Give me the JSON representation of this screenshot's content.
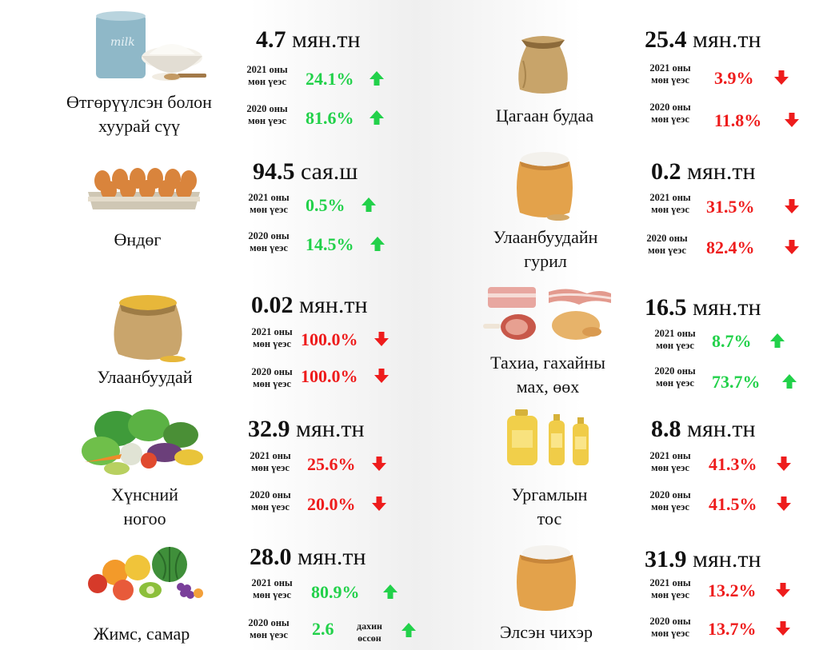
{
  "items": [
    {
      "name": "Өтгөрүүлсэн болон хуурай сүү",
      "name_l1": "Өтгөрүүлсэн болон",
      "name_l2": "хуурай сүү",
      "value": "4.7",
      "unit": "мян.тн",
      "icon": "milk-powder-icon",
      "cmp2021": {
        "label_l1": "2021 оны",
        "label_l2": "мөн үеэс",
        "pct": "24.1%",
        "dir": "up"
      },
      "cmp2020": {
        "label_l1": "2020 оны",
        "label_l2": "мөн үеэс",
        "pct": "81.6%",
        "dir": "up"
      }
    },
    {
      "name": "Цагаан будаа",
      "value": "25.4",
      "unit": "мян.тн",
      "icon": "rice-sack-icon",
      "cmp2021": {
        "label_l1": "2021 оны",
        "label_l2": "мөн үеэс",
        "pct": "3.9%",
        "dir": "down"
      },
      "cmp2020": {
        "label_l1": "2020 оны",
        "label_l2": "мөн үеэс",
        "pct": "11.8%",
        "dir": "down"
      }
    },
    {
      "name": "Өндөг",
      "value": "94.5",
      "unit": "сая.ш",
      "icon": "egg-tray-icon",
      "cmp2021": {
        "label_l1": "2021 оны",
        "label_l2": "мөн үеэс",
        "pct": "0.5%",
        "dir": "up"
      },
      "cmp2020": {
        "label_l1": "2020 оны",
        "label_l2": "мөн үеэс",
        "pct": "14.5%",
        "dir": "up"
      }
    },
    {
      "name": "Улаанбуудайн гурил",
      "name_l1": "Улаанбуудайн",
      "name_l2": "гурил",
      "value": "0.2",
      "unit": "мян.тн",
      "icon": "flour-sack-icon",
      "cmp2021": {
        "label_l1": "2021 оны",
        "label_l2": "мөн үеэс",
        "pct": "31.5%",
        "dir": "down"
      },
      "cmp2020": {
        "label_l1": "2020 оны",
        "label_l2": "мөн үеэс",
        "pct": "82.4%",
        "dir": "down"
      }
    },
    {
      "name": "Улаанбуудай",
      "value": "0.02",
      "unit": "мян.тн",
      "icon": "wheat-sack-icon",
      "cmp2021": {
        "label_l1": "2021 оны",
        "label_l2": "мөн үеэс",
        "pct": "100.0%",
        "dir": "down"
      },
      "cmp2020": {
        "label_l1": "2020 оны",
        "label_l2": "мөн үеэс",
        "pct": "100.0%",
        "dir": "down"
      }
    },
    {
      "name": "Тахиа, гахайны мах, өөх",
      "name_l1": "Тахиа, гахайны",
      "name_l2": "мах, өөх",
      "value": "16.5",
      "unit": "мян.тн",
      "icon": "meat-icon",
      "cmp2021": {
        "label_l1": "2021 оны",
        "label_l2": "мөн үеэс",
        "pct": "8.7%",
        "dir": "up"
      },
      "cmp2020": {
        "label_l1": "2020 оны",
        "label_l2": "мөн үеэс",
        "pct": "73.7%",
        "dir": "up"
      }
    },
    {
      "name": "Хүнсний ногоо",
      "name_l1": "Хүнсний",
      "name_l2": "ногоо",
      "value": "32.9",
      "unit": "мян.тн",
      "icon": "vegetables-icon",
      "cmp2021": {
        "label_l1": "2021 оны",
        "label_l2": "мөн үеэс",
        "pct": "25.6%",
        "dir": "down"
      },
      "cmp2020": {
        "label_l1": "2020 оны",
        "label_l2": "мөн үеэс",
        "pct": "20.0%",
        "dir": "down"
      }
    },
    {
      "name": "Ургамлын тос",
      "name_l1": "Ургамлын",
      "name_l2": "тос",
      "value": "8.8",
      "unit": "мян.тн",
      "icon": "oil-bottles-icon",
      "cmp2021": {
        "label_l1": "2021 оны",
        "label_l2": "мөн үеэс",
        "pct": "41.3%",
        "dir": "down"
      },
      "cmp2020": {
        "label_l1": "2020 оны",
        "label_l2": "мөн үеэс",
        "pct": "41.5%",
        "dir": "down"
      }
    },
    {
      "name": "Жимс, самар",
      "value": "28.0",
      "unit": "мян.тн",
      "icon": "fruits-icon",
      "cmp2021": {
        "label_l1": "2021 оны",
        "label_l2": "мөн үеэс",
        "pct": "80.9%",
        "dir": "up"
      },
      "cmp2020": {
        "label_l1": "2020 оны",
        "label_l2": "мөн үеэс",
        "pct": "2.6",
        "dir": "up",
        "note_l1": "дахин",
        "note_l2": "өссөн"
      }
    },
    {
      "name": "Элсэн чихэр",
      "value": "31.9",
      "unit": "мян.тн",
      "icon": "sugar-sack-icon",
      "cmp2021": {
        "label_l1": "2021 оны",
        "label_l2": "мөн үеэс",
        "pct": "13.2%",
        "dir": "down"
      },
      "cmp2020": {
        "label_l1": "2020 оны",
        "label_l2": "мөн үеэс",
        "pct": "13.7%",
        "dir": "down"
      }
    }
  ],
  "colors": {
    "up": "#22d14a",
    "down": "#ee1c1c",
    "sack": "#c8a46a",
    "sack_dark": "#8c6a3a"
  }
}
